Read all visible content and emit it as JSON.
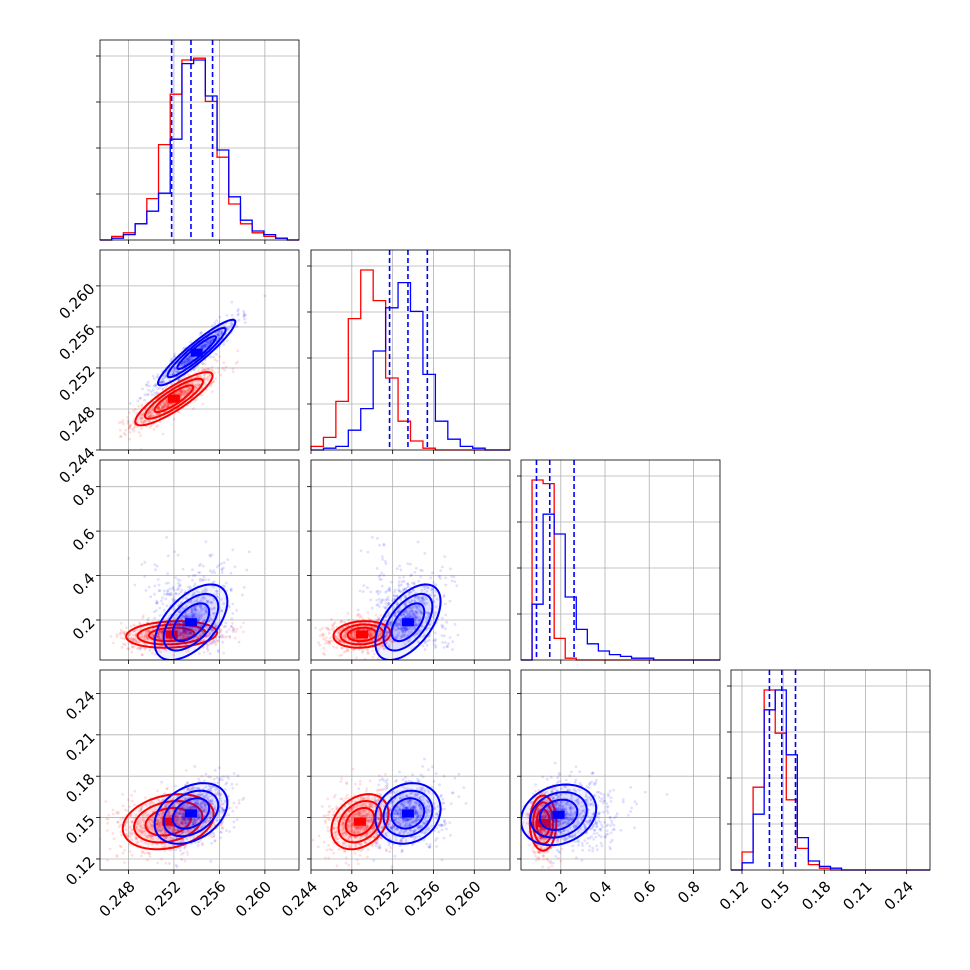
{
  "chart_data": {
    "type": "corner",
    "series_colors": [
      "#ff0000",
      "#0000ff"
    ],
    "quantile_line_color": "#0000ff",
    "grid": true,
    "params": [
      {
        "range": [
          0.2455,
          0.263
        ],
        "ticks": [
          0.248,
          0.252,
          0.256,
          0.26
        ],
        "tick_labels": [
          "0.248",
          "0.252",
          "0.256",
          "0.260"
        ]
      },
      {
        "range": [
          0.244,
          0.2635
        ],
        "ticks": [
          0.244,
          0.248,
          0.252,
          0.256,
          0.26
        ],
        "tick_labels": [
          "0.244",
          "0.248",
          "0.252",
          "0.256",
          "0.260"
        ]
      },
      {
        "range": [
          0.02,
          0.92
        ],
        "ticks": [
          0.2,
          0.4,
          0.6,
          0.8
        ],
        "tick_labels": [
          "0.2",
          "0.4",
          "0.6",
          "0.8"
        ]
      },
      {
        "range": [
          0.112,
          0.257
        ],
        "ticks": [
          0.12,
          0.15,
          0.18,
          0.21,
          0.24
        ],
        "tick_labels": [
          "0.12",
          "0.15",
          "0.18",
          "0.21",
          "0.24"
        ]
      }
    ],
    "marginals": [
      {
        "quantiles": [
          0.2518,
          0.2535,
          0.2554
        ],
        "red": {
          "edges": [
            0.2455,
            0.263
          ],
          "counts": [
            0,
            2,
            4,
            9,
            23,
            53,
            81,
            100,
            101,
            77,
            46,
            20,
            9,
            4,
            2,
            1,
            0
          ]
        },
        "blue": {
          "edges": [
            0.2455,
            0.263
          ],
          "counts": [
            0,
            1,
            3,
            9,
            16,
            26,
            56,
            98,
            100,
            80,
            50,
            24,
            11,
            5,
            3,
            1,
            0
          ]
        }
      },
      {
        "quantiles": [
          0.2517,
          0.2535,
          0.2554
        ],
        "red": {
          "edges": [
            0.244,
            0.2635
          ],
          "counts": [
            2,
            7,
            27,
            73,
            100,
            83,
            40,
            16,
            5,
            1,
            0,
            0,
            0,
            0,
            0,
            0
          ]
        },
        "blue": {
          "edges": [
            0.244,
            0.2635
          ],
          "counts": [
            0,
            1,
            2,
            11,
            23,
            55,
            79,
            93,
            77,
            42,
            16,
            6,
            2,
            1,
            0,
            0
          ]
        }
      },
      {
        "quantiles": [
          0.09,
          0.15,
          0.26
        ],
        "red": {
          "edges": [
            0.02,
            0.92
          ],
          "counts": [
            0,
            100,
            98,
            12,
            1,
            0,
            0,
            0,
            0,
            0,
            0,
            0,
            0,
            0,
            0,
            0,
            0,
            0
          ]
        },
        "blue": {
          "edges": [
            0.02,
            0.92
          ],
          "counts": [
            0,
            31,
            81,
            70,
            35,
            17,
            9,
            5,
            3,
            2,
            1,
            1,
            0,
            0,
            0,
            0,
            0,
            0
          ]
        }
      },
      {
        "quantiles": [
          0.14,
          0.149,
          0.159
        ],
        "red": {
          "edges": [
            0.112,
            0.257
          ],
          "counts": [
            0,
            10,
            46,
            100,
            76,
            39,
            12,
            3,
            1,
            0,
            0,
            0,
            0,
            0,
            0,
            0,
            0,
            0
          ]
        },
        "blue": {
          "edges": [
            0.112,
            0.257
          ],
          "counts": [
            0,
            4,
            31,
            89,
            100,
            64,
            18,
            5,
            2,
            1,
            0,
            0,
            0,
            0,
            0,
            0,
            0,
            0
          ]
        }
      }
    ],
    "joints": [
      {
        "row": 1,
        "col": 0,
        "red": {
          "mean": [
            0.252,
            0.249
          ],
          "sd": [
            0.0017,
            0.0013
          ],
          "rho": 0.86
        },
        "blue": {
          "mean": [
            0.254,
            0.2535
          ],
          "sd": [
            0.0017,
            0.0016
          ],
          "rho": 0.93
        }
      },
      {
        "row": 2,
        "col": 0,
        "red": {
          "mean": [
            0.2518,
            0.135
          ],
          "sd": [
            0.002,
            0.03
          ],
          "rho": 0.15
        },
        "blue": {
          "mean": [
            0.2535,
            0.19
          ],
          "sd": [
            0.0016,
            0.085
          ],
          "rho": 0.55
        }
      },
      {
        "row": 2,
        "col": 1,
        "red": {
          "mean": [
            0.249,
            0.135
          ],
          "sd": [
            0.0014,
            0.03
          ],
          "rho": 0.12
        },
        "blue": {
          "mean": [
            0.2535,
            0.19
          ],
          "sd": [
            0.0016,
            0.085
          ],
          "rho": 0.55
        }
      },
      {
        "row": 3,
        "col": 0,
        "red": {
          "mean": [
            0.2515,
            0.147
          ],
          "sd": [
            0.002,
            0.01
          ],
          "rho": 0.25
        },
        "blue": {
          "mean": [
            0.2535,
            0.153
          ],
          "sd": [
            0.0016,
            0.011
          ],
          "rho": 0.35
        }
      },
      {
        "row": 3,
        "col": 1,
        "red": {
          "mean": [
            0.2488,
            0.147
          ],
          "sd": [
            0.0014,
            0.01
          ],
          "rho": 0.3
        },
        "blue": {
          "mean": [
            0.2535,
            0.153
          ],
          "sd": [
            0.0016,
            0.011
          ],
          "rho": 0.15
        }
      },
      {
        "row": 3,
        "col": 2,
        "red": {
          "mean": [
            0.12,
            0.146
          ],
          "sd": [
            0.03,
            0.01
          ],
          "rho": 0.0
        },
        "blue": {
          "mean": [
            0.19,
            0.152
          ],
          "sd": [
            0.085,
            0.011
          ],
          "rho": 0.2
        }
      }
    ]
  }
}
